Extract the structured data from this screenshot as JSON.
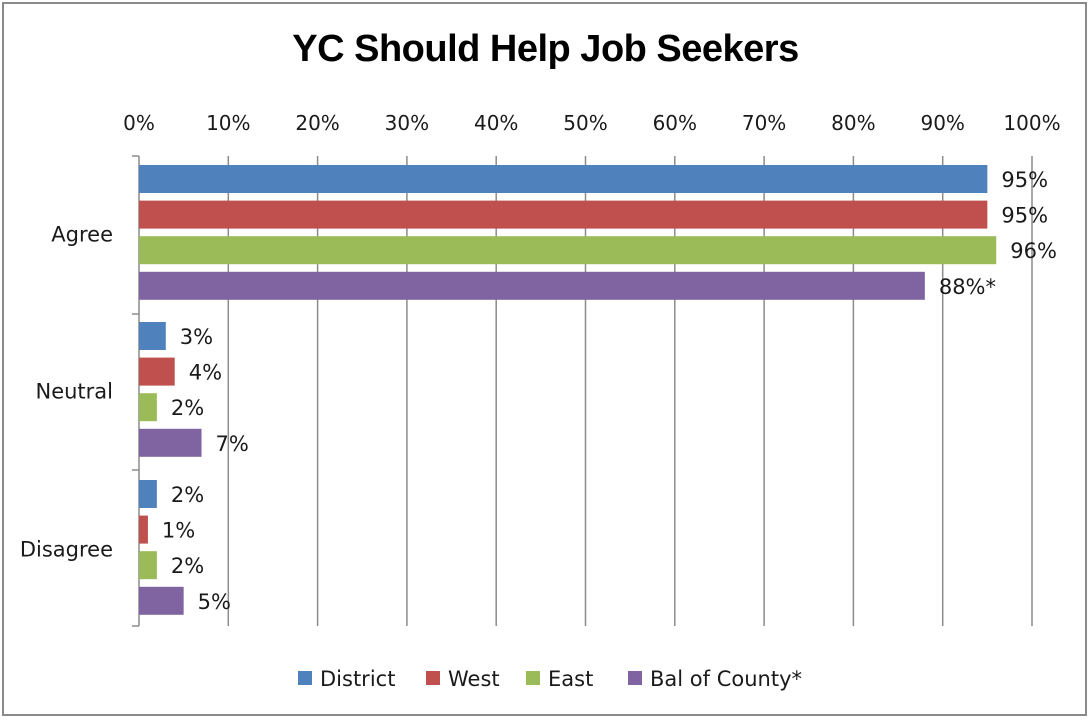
{
  "chart_data": {
    "type": "bar",
    "orientation": "horizontal",
    "title": "YC Should Help Job Seekers",
    "categories": [
      "Agree",
      "Neutral",
      "Disagree"
    ],
    "series": [
      {
        "name": "District",
        "color": "#4f81bd",
        "values": [
          95,
          3,
          2
        ],
        "labels": [
          "95%",
          "3%",
          "2%"
        ]
      },
      {
        "name": "West",
        "color": "#c0504d",
        "values": [
          95,
          4,
          1
        ],
        "labels": [
          "95%",
          "4%",
          "1%"
        ]
      },
      {
        "name": "East",
        "color": "#9bbb59",
        "values": [
          96,
          2,
          2
        ],
        "labels": [
          "96%",
          "2%",
          "2%"
        ]
      },
      {
        "name": "Bal of County*",
        "color": "#8064a2",
        "values": [
          88,
          7,
          5
        ],
        "labels": [
          "88%*",
          "7%",
          "5%"
        ]
      }
    ],
    "x_ticks": [
      "0%",
      "10%",
      "20%",
      "30%",
      "40%",
      "50%",
      "60%",
      "70%",
      "80%",
      "90%",
      "100%"
    ],
    "xlim": [
      0,
      100
    ],
    "x_axis_position": "top",
    "grid": true,
    "legend_position": "bottom"
  }
}
